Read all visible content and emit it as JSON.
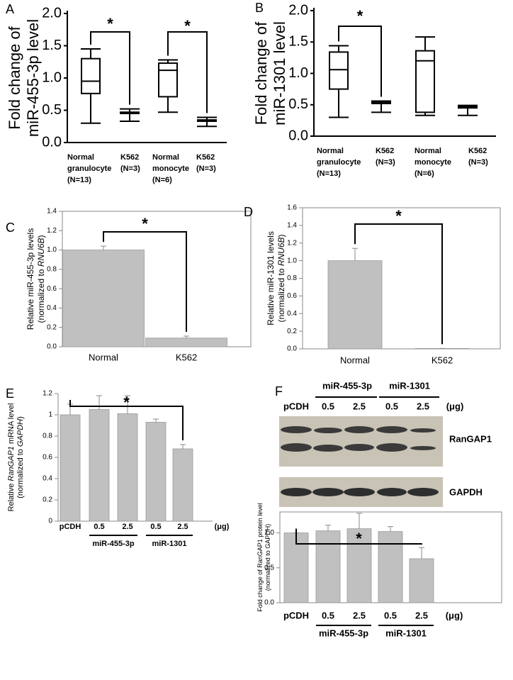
{
  "chart_data": [
    {
      "type": "box",
      "label": "A",
      "ylabel": [
        [
          "Fold change of"
        ],
        [
          "miR-455-3p level"
        ]
      ],
      "categories": [
        [
          "Normal",
          "granulocyte",
          "(N=13)"
        ],
        [
          "K562",
          "(N=3)"
        ],
        [
          "Normal",
          "monocyte",
          "(N=6)"
        ],
        [
          "K562",
          "(N=3)"
        ]
      ],
      "boxes": [
        {
          "min": 0.3,
          "q1": 0.76,
          "median": 0.95,
          "q3": 1.3,
          "max": 1.45
        },
        {
          "min": 0.33,
          "q1": 0.45,
          "median": 0.46,
          "q3": 0.47,
          "max": 0.52
        },
        {
          "min": 0.47,
          "q1": 0.71,
          "median": 1.12,
          "q3": 1.23,
          "max": 1.28
        },
        {
          "min": 0.25,
          "q1": 0.33,
          "median": 0.34,
          "q3": 0.35,
          "max": 0.39
        }
      ],
      "ylim": [
        0,
        2
      ],
      "yticks": [
        {
          "value": 0,
          "label": "0.0"
        },
        0.5,
        {
          "value": 1,
          "label": "1.0"
        },
        1.5,
        {
          "value": 2,
          "label": "2.0"
        }
      ],
      "annotations": [
        "*",
        "*"
      ]
    },
    {
      "type": "box",
      "label": "B",
      "ylabel": [
        [
          "Fold change of"
        ],
        [
          "miR-1301 level"
        ]
      ],
      "categories": [
        [
          "Normal",
          "granulocyte",
          "(N=13)"
        ],
        [
          "K562",
          "(N=3)"
        ],
        [
          "Normal",
          "monocyte",
          "(N=6)"
        ],
        [
          "K562",
          "(N=3)"
        ]
      ],
      "boxes": [
        {
          "min": 0.3,
          "q1": 0.75,
          "median": 1.06,
          "q3": 1.34,
          "max": 1.44
        },
        {
          "min": 0.38,
          "q1": 0.52,
          "median": 0.53,
          "q3": 0.55,
          "max": 0.56
        },
        {
          "min": 0.33,
          "q1": 0.38,
          "median": 1.2,
          "q3": 1.36,
          "max": 1.58
        },
        {
          "min": 0.33,
          "q1": 0.45,
          "median": 0.46,
          "q3": 0.48,
          "max": 0.49
        }
      ],
      "ylim": [
        0,
        2
      ],
      "yticks": [
        {
          "value": 0,
          "label": "0.0"
        },
        0.5,
        {
          "value": 1,
          "label": "1.0"
        },
        1.5,
        {
          "value": 2,
          "label": "2.0"
        }
      ],
      "annotations": [
        "*"
      ]
    },
    {
      "type": "bar",
      "label": "C",
      "ylabel": [
        [
          "Relative miR-455-3p levels"
        ],
        [
          "(normalized to ",
          "RNU6B",
          ")"
        ]
      ],
      "categories": [
        "Normal",
        "K562"
      ],
      "values": [
        1.0,
        0.09
      ],
      "errors": [
        0.04,
        0.02
      ],
      "color": "#c0c0c0",
      "ylim": [
        0,
        1.4
      ],
      "yticks": [
        {
          "value": 0,
          "label": "0.0"
        },
        0.2,
        0.4,
        0.6,
        0.8,
        {
          "value": 1,
          "label": "1.0"
        },
        1.2,
        1.4
      ],
      "annotations": [
        "*"
      ]
    },
    {
      "type": "bar",
      "label": "D",
      "ylabel": [
        [
          "Relative miR-1301 levels"
        ],
        [
          "(normalized to ",
          "RNU6B",
          ")"
        ]
      ],
      "categories": [
        "Normal",
        "K562"
      ],
      "values": [
        1.0,
        0.005
      ],
      "errors": [
        0.14,
        0
      ],
      "color": "#c0c0c0",
      "ylim": [
        0,
        1.6
      ],
      "yticks": [
        {
          "value": 0,
          "label": "0.0"
        },
        0.2,
        0.4,
        0.6,
        0.8,
        {
          "value": 1,
          "label": "1.0"
        },
        1.2,
        1.4,
        1.6
      ],
      "annotations": [
        "*"
      ]
    },
    {
      "type": "bar",
      "label": "E",
      "ylabel": [
        [
          "Relative ",
          "RanGAP1",
          " mRNA level"
        ],
        [
          "(normalized to ",
          "GAPDH",
          ")"
        ]
      ],
      "categories": [
        "pCDH",
        "0.5",
        "2.5",
        "0.5",
        "2.5"
      ],
      "groups": [
        "miR-455-3p",
        "miR-1301"
      ],
      "unit": "(μg)",
      "values": [
        1.0,
        1.05,
        1.01,
        0.93,
        0.68
      ],
      "errors": [
        0.1,
        0.13,
        0.17,
        0.03,
        0.04
      ],
      "color": "#c0c0c0",
      "ylim": [
        0,
        1.2
      ],
      "yticks": [
        0,
        0.2,
        0.4,
        0.6,
        0.8,
        1,
        1.2
      ],
      "annotations": [
        "*"
      ]
    },
    {
      "type": "bar",
      "label": "F",
      "ylabel": [
        [
          "Fold change of RanGAP1 protein level"
        ],
        [
          "(normalized to GAPDH)"
        ]
      ],
      "categories": [
        "pCDH",
        "0.5",
        "2.5",
        "0.5",
        "2.5"
      ],
      "groups": [
        "miR-455-3p",
        "miR-1301"
      ],
      "unit": "(μg)",
      "values": [
        1.0,
        1.03,
        1.06,
        1.02,
        0.63
      ],
      "errors": [
        0,
        0.08,
        0.22,
        0.07,
        0.16
      ],
      "color": "#c0c0c0",
      "ylim": [
        0,
        1.3
      ],
      "yticks": [
        {
          "value": 0,
          "label": "0.0"
        },
        0.5,
        {
          "value": 1,
          "label": "1.0"
        }
      ],
      "annotations": [
        "*"
      ]
    }
  ],
  "blot": {
    "lanes": [
      "pCDH",
      "0.5",
      "2.5",
      "0.5",
      "2.5"
    ],
    "unit": "(μg)",
    "groups": [
      "miR-455-3p",
      "miR-1301"
    ],
    "bands": [
      "RanGAP1",
      "GAPDH"
    ]
  }
}
